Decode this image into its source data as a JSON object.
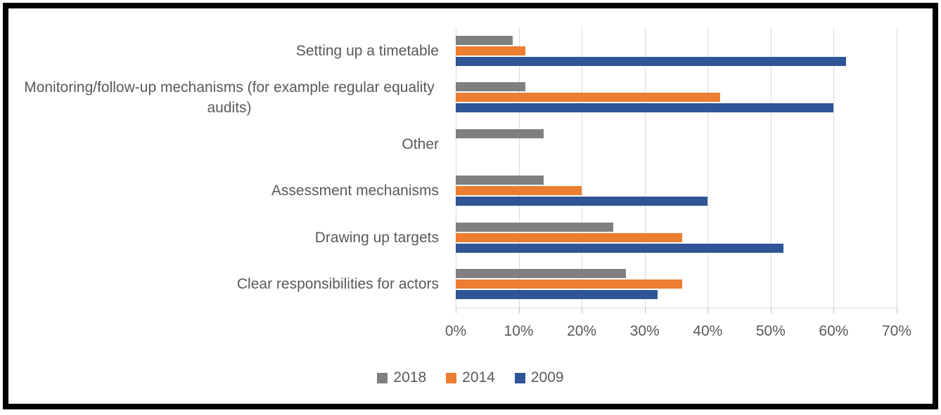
{
  "chart_data": {
    "type": "bar",
    "orientation": "horizontal",
    "title": "",
    "xlabel": "",
    "ylabel": "",
    "categories": [
      "Setting up a timetable",
      "Monitoring/follow-up mechanisms (for example regular equality audits)",
      "Other",
      "Assessment mechanisms",
      "Drawing up targets",
      "Clear responsibilities for actors"
    ],
    "series": [
      {
        "name": "2018",
        "color": "#7F7F7F",
        "values": [
          9,
          11,
          14,
          14,
          25,
          27
        ]
      },
      {
        "name": "2014",
        "color": "#ED7D31",
        "values": [
          11,
          42,
          0,
          20,
          36,
          36
        ]
      },
      {
        "name": "2009",
        "color": "#2F5597",
        "values": [
          62,
          60,
          0,
          40,
          52,
          32
        ]
      }
    ],
    "xlim": [
      0,
      70
    ],
    "x_ticks": [
      "0%",
      "10%",
      "20%",
      "30%",
      "40%",
      "50%",
      "60%",
      "70%"
    ],
    "grid": true,
    "legend_position": "bottom",
    "gridline_color": "#D9D9D9",
    "text_color": "#595959"
  }
}
